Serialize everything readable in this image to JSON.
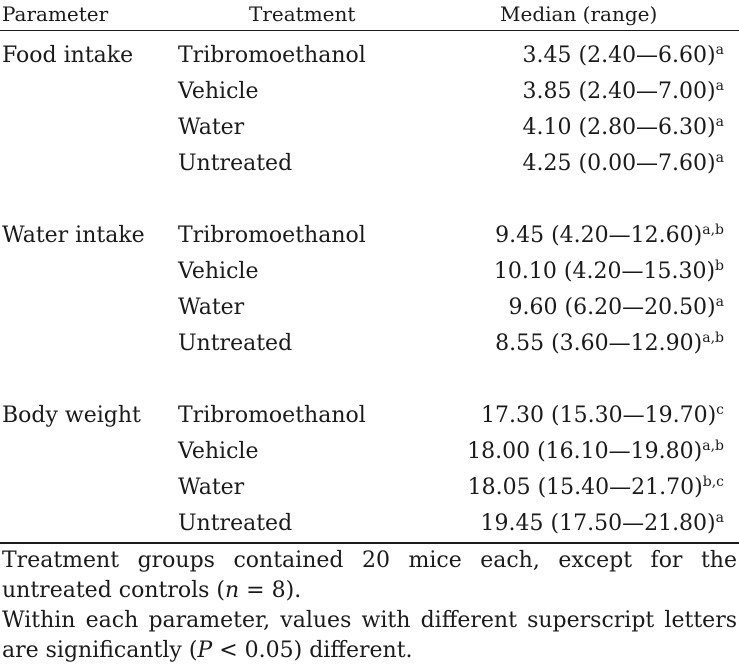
{
  "header": {
    "parameter": "Parameter",
    "treatment": "Treatment",
    "median": "Median (range)"
  },
  "groups": [
    {
      "parameter": "Food intake",
      "rows": [
        {
          "treatment": "Tribromoethanol",
          "value": "3.45 (2.40—6.60)",
          "sup": "a"
        },
        {
          "treatment": "Vehicle",
          "value": "3.85 (2.40—7.00)",
          "sup": "a"
        },
        {
          "treatment": "Water",
          "value": "4.10 (2.80—6.30)",
          "sup": "a"
        },
        {
          "treatment": "Untreated",
          "value": "4.25 (0.00—7.60)",
          "sup": "a"
        }
      ]
    },
    {
      "parameter": "Water intake",
      "rows": [
        {
          "treatment": "Tribromoethanol",
          "value": "9.45 (4.20—12.60)",
          "sup": "a,b"
        },
        {
          "treatment": "Vehicle",
          "value": "10.10 (4.20—15.30)",
          "sup": "b"
        },
        {
          "treatment": "Water",
          "value": "9.60 (6.20—20.50)",
          "sup": "a"
        },
        {
          "treatment": "Untreated",
          "value": "8.55 (3.60—12.90)",
          "sup": "a,b"
        }
      ]
    },
    {
      "parameter": "Body weight",
      "rows": [
        {
          "treatment": "Tribromoethanol",
          "value": "17.30 (15.30—19.70)",
          "sup": "c"
        },
        {
          "treatment": "Vehicle",
          "value": "18.00 (16.10—19.80)",
          "sup": "a,b"
        },
        {
          "treatment": "Water",
          "value": "18.05 (15.40—21.70)",
          "sup": "b,c"
        },
        {
          "treatment": "Untreated",
          "value": "19.45 (17.50—21.80)",
          "sup": "a"
        }
      ]
    }
  ],
  "footnotes": {
    "note1_a": "Treatment groups contained 20 mice each, except for the untreated controls (",
    "note1_n": "n",
    "note1_b": " = 8).",
    "note2_a": "Within each parameter, values with different superscript letters are significantly (",
    "note2_p": "P",
    "note2_b": " < 0.05) different."
  }
}
